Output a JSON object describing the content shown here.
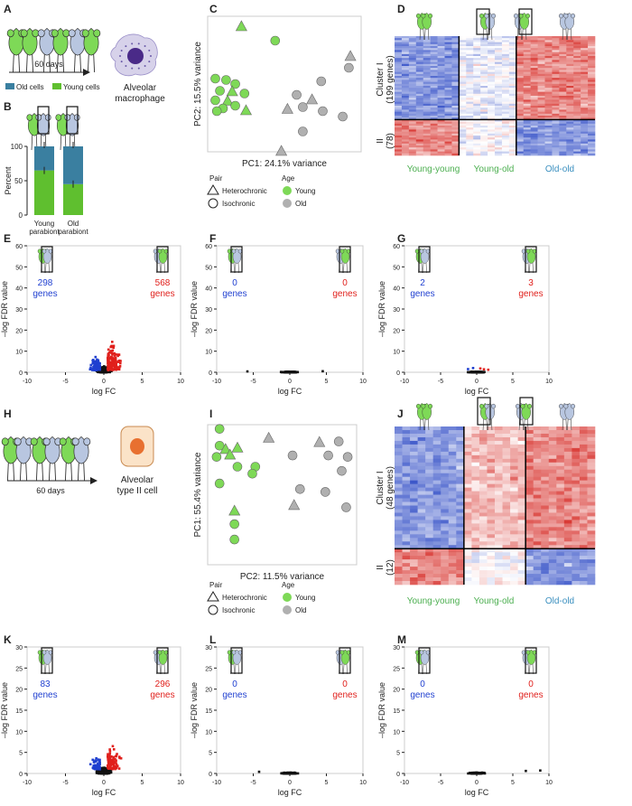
{
  "colors": {
    "young": "#7ed957",
    "old": "#b0b0b0",
    "down": "#1f3fd0",
    "up": "#e0201c",
    "heat_blue": "#3b56c9",
    "heat_red": "#d93a35",
    "old_cells": "#3a7fa0",
    "young_cells": "#5fbf2f",
    "macrophage": "#7a55b0",
    "at2_nucleus": "#e87030"
  },
  "panel_letters": [
    "A",
    "B",
    "C",
    "D",
    "E",
    "F",
    "G",
    "H",
    "I",
    "J",
    "K",
    "L",
    "M"
  ],
  "A": {
    "days": "60 days",
    "cell_label": [
      "Alveolar",
      "macrophage"
    ],
    "legend_old": "Old cells",
    "legend_young": "Young cells"
  },
  "B": {
    "ylabel": "Percent",
    "ticks": [
      "0",
      "50",
      "100"
    ],
    "x1": [
      "Young",
      "parabiont"
    ],
    "x2": [
      "Old",
      "parabiont"
    ]
  },
  "C": {
    "xlabel": "PC1: 24.1% variance",
    "ylabel": "PC2: 15.5% variance"
  },
  "legend_pca": {
    "pair_title": "Pair",
    "het": "Heterochronic",
    "iso": "Isochronic",
    "age_title": "Age",
    "young": "Young",
    "old": "Old"
  },
  "D": {
    "cluster1": [
      "Cluster I",
      "(199 genes)"
    ],
    "cluster2": [
      "II",
      "(78)"
    ],
    "groups": [
      "Young-young",
      "Young-old",
      "Old-old"
    ]
  },
  "volcano_labels": {
    "xlabel": "log FC",
    "ylabel": "–log FDR value",
    "genes": "genes"
  },
  "E": {
    "left": "298",
    "right": "568",
    "yticks": [
      "0",
      "10",
      "20",
      "30",
      "40",
      "50",
      "60"
    ],
    "xticks": [
      "-10",
      "-5",
      "0",
      "5",
      "10"
    ]
  },
  "F": {
    "left": "0",
    "right": "0"
  },
  "G": {
    "left": "2",
    "right": "3"
  },
  "H": {
    "days": "60 days",
    "cell_label": [
      "Alveolar",
      "type II cell"
    ]
  },
  "I": {
    "xlabel": "PC2: 11.5% variance",
    "ylabel": "PC1: 55.4% variance"
  },
  "J": {
    "cluster1": [
      "Cluster I",
      "(48 genes)"
    ],
    "cluster2": [
      "II",
      "(12)"
    ],
    "groups": [
      "Young-young",
      "Young-old",
      "Old-old"
    ]
  },
  "K": {
    "left": "83",
    "right": "296",
    "yticks": [
      "0",
      "5",
      "10",
      "15",
      "20",
      "25",
      "30"
    ]
  },
  "L": {
    "left": "0",
    "right": "0"
  },
  "M": {
    "left": "0",
    "right": "0"
  },
  "chart_data": [
    {
      "type": "scatter",
      "panel": "C",
      "xlabel": "PC1: 24.1% variance",
      "ylabel": "PC2: 15.5% variance",
      "series": [
        {
          "name": "Young",
          "color": "#7ed957"
        },
        {
          "name": "Old",
          "color": "#b0b0b0"
        }
      ]
    },
    {
      "type": "scatter",
      "panel": "E",
      "xlabel": "log FC",
      "ylabel": "–log FDR value",
      "xlim": [
        -10,
        10
      ],
      "ylim": [
        0,
        60
      ]
    },
    {
      "type": "scatter",
      "panel": "F",
      "xlabel": "log FC",
      "ylabel": "–log FDR value",
      "xlim": [
        -10,
        10
      ],
      "ylim": [
        0,
        60
      ]
    },
    {
      "type": "scatter",
      "panel": "G",
      "xlabel": "log FC",
      "ylabel": "–log FDR value",
      "xlim": [
        -10,
        10
      ],
      "ylim": [
        0,
        60
      ]
    },
    {
      "type": "scatter",
      "panel": "I",
      "xlabel": "PC2: 11.5% variance",
      "ylabel": "PC1: 55.4% variance",
      "series": [
        {
          "name": "Young",
          "color": "#7ed957"
        },
        {
          "name": "Old",
          "color": "#b0b0b0"
        }
      ]
    },
    {
      "type": "scatter",
      "panel": "K",
      "xlabel": "log FC",
      "ylabel": "–log FDR value",
      "xlim": [
        -10,
        10
      ],
      "ylim": [
        0,
        30
      ]
    },
    {
      "type": "scatter",
      "panel": "L",
      "xlabel": "log FC",
      "ylabel": "–log FDR value",
      "xlim": [
        -10,
        10
      ],
      "ylim": [
        0,
        30
      ]
    },
    {
      "type": "scatter",
      "panel": "M",
      "xlabel": "log FC",
      "ylabel": "–log FDR value",
      "xlim": [
        -10,
        10
      ],
      "ylim": [
        0,
        30
      ]
    },
    {
      "type": "bar",
      "panel": "B",
      "categories": [
        "Young parabiont",
        "Old parabiont"
      ],
      "ylabel": "Percent",
      "ylim": [
        0,
        100
      ],
      "series": [
        {
          "name": "Young cells",
          "values": [
            65,
            45
          ]
        },
        {
          "name": "Old cells",
          "values": [
            35,
            55
          ]
        }
      ]
    }
  ]
}
